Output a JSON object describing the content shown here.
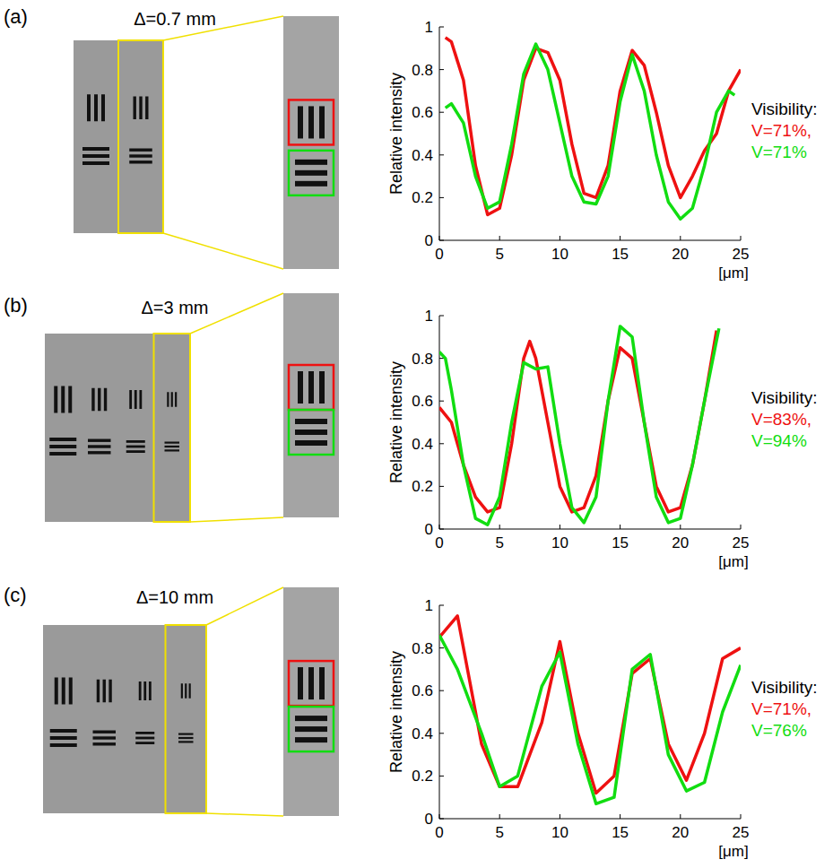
{
  "chart_data": [
    {
      "type": "line",
      "panel": "(a)",
      "title": "Δ=0.7 mm",
      "ylabel": "Relative intensity",
      "xlabel": "[μm]",
      "xlim": [
        0,
        25
      ],
      "ylim": [
        0,
        1
      ],
      "xticks": [
        0,
        5,
        10,
        15,
        20,
        25
      ],
      "yticks": [
        0,
        0.2,
        0.4,
        0.6,
        0.8,
        1
      ],
      "annotations": [
        "Visibility:",
        "V=71%,",
        "V=71%"
      ],
      "series": [
        {
          "color": "#ee1111",
          "x": [
            0.5,
            1,
            2,
            3,
            4,
            5,
            6,
            7,
            8,
            9,
            10,
            11,
            12,
            13,
            14,
            15,
            16,
            17,
            18,
            19,
            20,
            21,
            22,
            23,
            24,
            25
          ],
          "values": [
            0.95,
            0.93,
            0.75,
            0.35,
            0.12,
            0.15,
            0.4,
            0.75,
            0.9,
            0.88,
            0.75,
            0.45,
            0.22,
            0.2,
            0.35,
            0.7,
            0.89,
            0.82,
            0.6,
            0.35,
            0.2,
            0.3,
            0.42,
            0.5,
            0.7,
            0.8
          ]
        },
        {
          "color": "#11dd11",
          "x": [
            0.5,
            1,
            2,
            3,
            4,
            5,
            6,
            7,
            8,
            9,
            10,
            11,
            12,
            13,
            14,
            15,
            16,
            17,
            18,
            19,
            20,
            21,
            22,
            23,
            24,
            24.5
          ],
          "values": [
            0.62,
            0.64,
            0.55,
            0.3,
            0.15,
            0.18,
            0.45,
            0.78,
            0.92,
            0.8,
            0.55,
            0.3,
            0.18,
            0.17,
            0.3,
            0.65,
            0.87,
            0.7,
            0.4,
            0.18,
            0.1,
            0.15,
            0.35,
            0.6,
            0.7,
            0.68
          ]
        }
      ]
    },
    {
      "type": "line",
      "panel": "(b)",
      "title": "Δ=3 mm",
      "ylabel": "Relative intensity",
      "xlabel": "[μm]",
      "xlim": [
        0,
        25
      ],
      "ylim": [
        0,
        1
      ],
      "xticks": [
        0,
        5,
        10,
        15,
        20,
        25
      ],
      "yticks": [
        0,
        0.2,
        0.4,
        0.6,
        0.8,
        1
      ],
      "annotations": [
        "Visibility:",
        "V=83%,",
        "V=94%"
      ],
      "series": [
        {
          "color": "#ee1111",
          "x": [
            0,
            1,
            2,
            3,
            4,
            5,
            6,
            7,
            7.5,
            8,
            9,
            10,
            11,
            12,
            13,
            14,
            15,
            16,
            17,
            18,
            19,
            20,
            21,
            22,
            23
          ],
          "values": [
            0.57,
            0.5,
            0.3,
            0.15,
            0.08,
            0.1,
            0.4,
            0.8,
            0.88,
            0.8,
            0.5,
            0.2,
            0.08,
            0.1,
            0.25,
            0.6,
            0.85,
            0.8,
            0.5,
            0.2,
            0.08,
            0.1,
            0.3,
            0.6,
            0.93
          ]
        },
        {
          "color": "#11dd11",
          "x": [
            0,
            0.5,
            1,
            2,
            3,
            4,
            5,
            6,
            7,
            8,
            9,
            10,
            11,
            12,
            13,
            14,
            15,
            16,
            17,
            18,
            19,
            20,
            21,
            22,
            23.2
          ],
          "values": [
            0.83,
            0.8,
            0.65,
            0.3,
            0.05,
            0.02,
            0.15,
            0.5,
            0.78,
            0.75,
            0.76,
            0.4,
            0.1,
            0.03,
            0.15,
            0.6,
            0.95,
            0.9,
            0.5,
            0.15,
            0.03,
            0.05,
            0.3,
            0.6,
            0.94
          ]
        }
      ]
    },
    {
      "type": "line",
      "panel": "(c)",
      "title": "Δ=10 mm",
      "ylabel": "Relative intensity",
      "xlabel": "[μm]",
      "xlim": [
        0,
        25
      ],
      "ylim": [
        0,
        1
      ],
      "xticks": [
        0,
        5,
        10,
        15,
        20,
        25
      ],
      "yticks": [
        0,
        0.2,
        0.4,
        0.6,
        0.8,
        1
      ],
      "annotations": [
        "Visibility:",
        "V=71%,",
        "V=76%"
      ],
      "series": [
        {
          "color": "#ee1111",
          "x": [
            0,
            1.5,
            3.5,
            5,
            6.5,
            8.5,
            10,
            11.5,
            13,
            14.5,
            16,
            17.5,
            19,
            20.5,
            22,
            23.5,
            25
          ],
          "values": [
            0.85,
            0.95,
            0.35,
            0.15,
            0.15,
            0.45,
            0.83,
            0.4,
            0.12,
            0.2,
            0.68,
            0.75,
            0.35,
            0.18,
            0.4,
            0.75,
            0.8
          ]
        },
        {
          "color": "#11dd11",
          "x": [
            0,
            1.5,
            3.5,
            5,
            6.5,
            8.5,
            10,
            11.5,
            13,
            14.5,
            16,
            17.5,
            19,
            20.5,
            22,
            23.5,
            25
          ],
          "values": [
            0.86,
            0.7,
            0.4,
            0.15,
            0.2,
            0.62,
            0.78,
            0.35,
            0.07,
            0.1,
            0.7,
            0.77,
            0.3,
            0.13,
            0.17,
            0.5,
            0.72
          ]
        }
      ]
    }
  ]
}
